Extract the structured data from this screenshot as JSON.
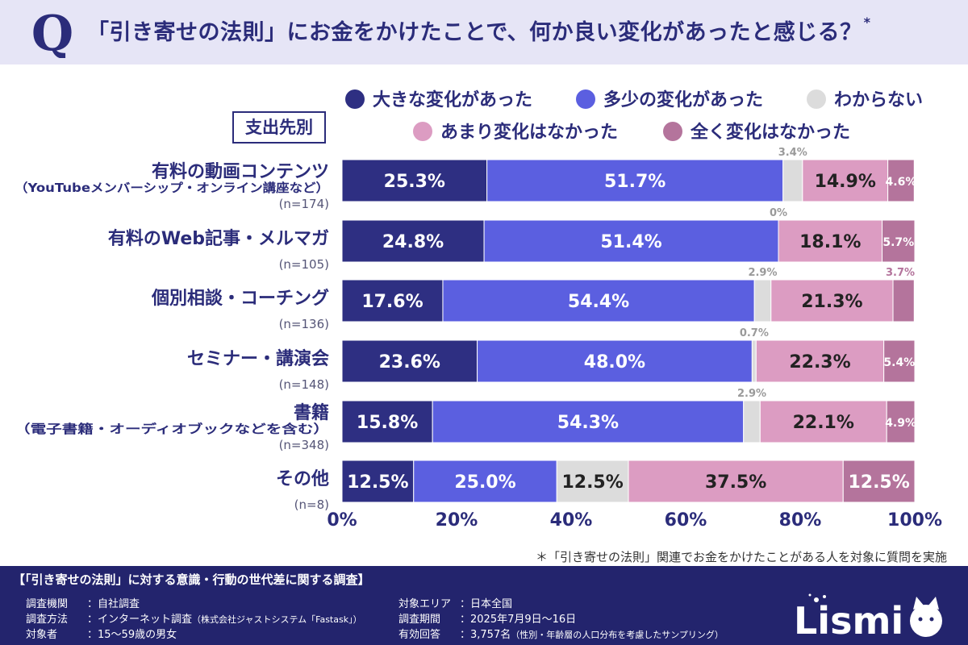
{
  "title": {
    "q_letter": "Q",
    "text": "「引き寄せの法則」にお金をかけたことで、何か良い変化があったと感じる？",
    "asterisk": "*"
  },
  "segment_label": "支出先別",
  "colors": {
    "header_bg": "#e6e5f6",
    "title_text": "#2b2c7a",
    "footer_bg": "#23246d"
  },
  "chart_data": {
    "type": "bar",
    "orientation": "horizontal",
    "stacked": true,
    "xlim": [
      0,
      100
    ],
    "x_ticks": [
      "0%",
      "20%",
      "40%",
      "60%",
      "80%",
      "100%"
    ],
    "categories": [
      {
        "label": "有料の動画コンテンツ",
        "sub": "（YouTubeメンバーシップ・オンライン講座など）",
        "n": "(n=174)"
      },
      {
        "label": "有料のWeb記事・メルマガ",
        "sub": "",
        "n": "(n=105)"
      },
      {
        "label": "個別相談・コーチング",
        "sub": "",
        "n": "(n=136)"
      },
      {
        "label": "セミナー・講演会",
        "sub": "",
        "n": "(n=148)"
      },
      {
        "label": "書籍",
        "sub": "（電子書籍・オーディオブックなどを含む）",
        "n": "(n=348)"
      },
      {
        "label": "その他",
        "sub": "",
        "n": "(n=8)"
      }
    ],
    "series": [
      {
        "name": "大きな変化があった",
        "color": "#2e2f82",
        "values": [
          25.3,
          24.8,
          17.6,
          23.6,
          15.8,
          12.5
        ]
      },
      {
        "name": "多少の変化があった",
        "color": "#5b5fe0",
        "values": [
          51.7,
          51.4,
          54.4,
          48.0,
          54.3,
          25.0
        ]
      },
      {
        "name": "わからない",
        "color": "#dcdcdc",
        "values": [
          3.4,
          0,
          2.9,
          0.7,
          2.9,
          12.5
        ]
      },
      {
        "name": "あまり変化はなかった",
        "color": "#dc9cc2",
        "values": [
          14.9,
          18.1,
          21.3,
          22.3,
          22.1,
          37.5
        ]
      },
      {
        "name": "全く変化はなかった",
        "color": "#b4749c",
        "values": [
          4.6,
          5.7,
          3.7,
          5.4,
          4.9,
          12.5
        ]
      }
    ],
    "value_labels": [
      [
        "25.3%",
        "51.7%",
        "3.4%",
        "14.9%",
        "4.6%"
      ],
      [
        "24.8%",
        "51.4%",
        "0%",
        "18.1%",
        "5.7%"
      ],
      [
        "17.6%",
        "54.4%",
        "2.9%",
        "21.3%",
        "3.7%"
      ],
      [
        "23.6%",
        "48.0%",
        "0.7%",
        "22.3%",
        "5.4%"
      ],
      [
        "15.8%",
        "54.3%",
        "2.9%",
        "22.1%",
        "4.9%"
      ],
      [
        "12.5%",
        "25.0%",
        "12.5%",
        "37.5%",
        "12.5%"
      ]
    ]
  },
  "note": "＊「引き寄せの法則」関連でお金をかけたことがある人を対象に質問を実施",
  "footer": {
    "title": "【「引き寄せの法則」に対する意識・行動の世代差に関する調査】",
    "left": [
      {
        "key": "調査機関",
        "value": "：自社調査",
        "extra": ""
      },
      {
        "key": "調査方法",
        "value": "：インターネット調査",
        "extra": "（株式会社ジャストシステム「Fastask」）"
      },
      {
        "key": "対象者",
        "value": "：15〜59歳の男女",
        "extra": ""
      }
    ],
    "right": [
      {
        "key": "対象エリア",
        "value": "：日本全国",
        "extra": ""
      },
      {
        "key": "調査期間",
        "value": "：2025年7月9日〜16日",
        "extra": ""
      },
      {
        "key": "有効回答",
        "value": "：3,757名",
        "extra": "（性別・年齢層の人口分布を考慮したサンプリング）"
      }
    ]
  },
  "logo": {
    "text": "Lismi"
  }
}
